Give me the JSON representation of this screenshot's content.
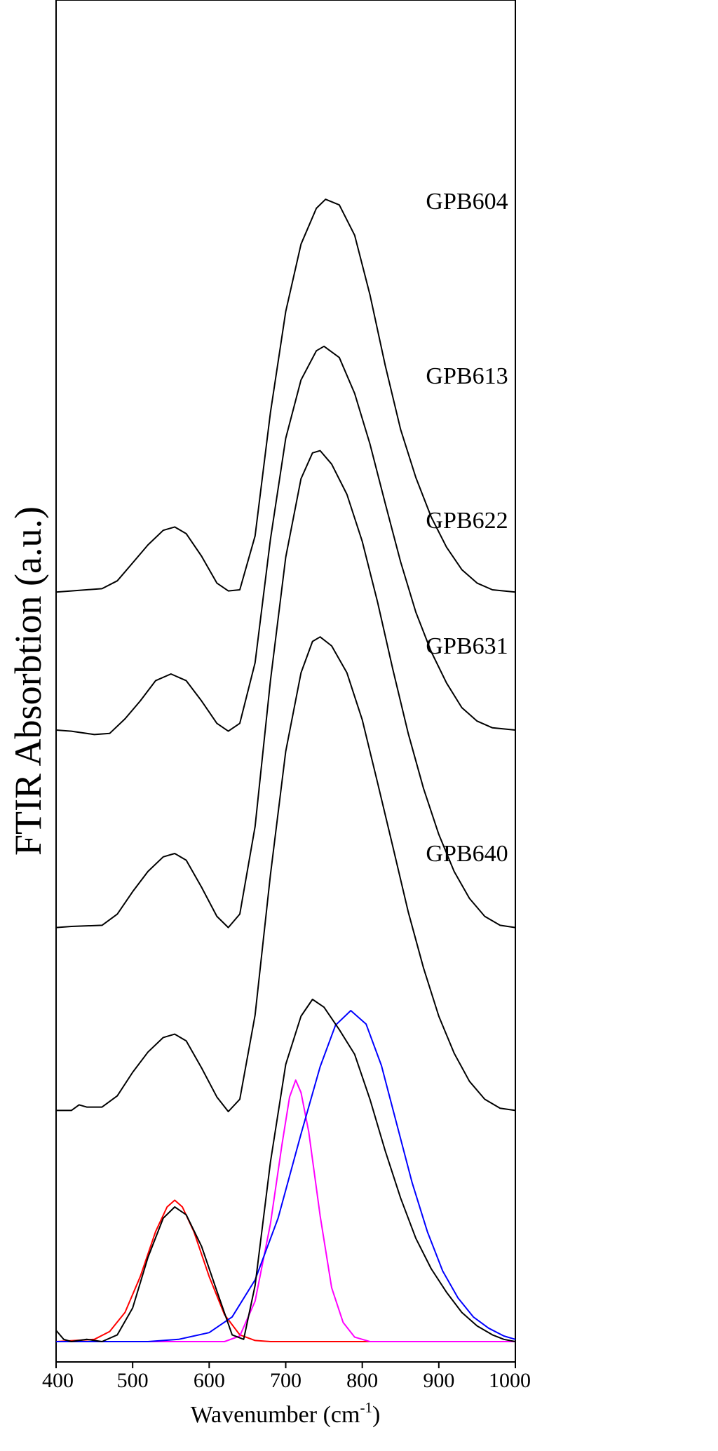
{
  "chart_data": {
    "type": "line",
    "xlabel_main": "Wavenumber (cm",
    "xlabel_sup": "-1",
    "xlabel_close": ")",
    "ylabel": "FTIR Absorbtion (a.u.)",
    "xlim": [
      400,
      1000
    ],
    "ylim": [
      0,
      100
    ],
    "x_ticks": [
      "400",
      "500",
      "600",
      "700",
      "800",
      "900",
      "1000"
    ],
    "grid": false,
    "y_tick_labels": false,
    "series": [
      {
        "name": "GPB604",
        "color": "#000000",
        "offset": 66.8,
        "points": [
          [
            400,
            0
          ],
          [
            420,
            0.1
          ],
          [
            460,
            0.3
          ],
          [
            480,
            1.0
          ],
          [
            500,
            2.6
          ],
          [
            520,
            4.2
          ],
          [
            540,
            5.5
          ],
          [
            555,
            5.8
          ],
          [
            570,
            5.2
          ],
          [
            590,
            3.2
          ],
          [
            610,
            0.8
          ],
          [
            625,
            0.1
          ],
          [
            640,
            0.2
          ],
          [
            660,
            5
          ],
          [
            680,
            16
          ],
          [
            700,
            25
          ],
          [
            720,
            31
          ],
          [
            740,
            34.2
          ],
          [
            752,
            35
          ],
          [
            770,
            34.5
          ],
          [
            790,
            31.8
          ],
          [
            810,
            26.5
          ],
          [
            830,
            20.2
          ],
          [
            850,
            14.5
          ],
          [
            870,
            10.2
          ],
          [
            890,
            6.7
          ],
          [
            910,
            4
          ],
          [
            930,
            2
          ],
          [
            950,
            0.8
          ],
          [
            970,
            0.2
          ],
          [
            1000,
            0
          ]
        ]
      },
      {
        "name": "GPB613",
        "color": "#000000",
        "offset": 54.5,
        "points": [
          [
            400,
            0
          ],
          [
            420,
            -0.1
          ],
          [
            450,
            -0.4
          ],
          [
            470,
            -0.3
          ],
          [
            490,
            1.0
          ],
          [
            510,
            2.6
          ],
          [
            530,
            4.4
          ],
          [
            550,
            5.0
          ],
          [
            570,
            4.4
          ],
          [
            590,
            2.6
          ],
          [
            610,
            0.6
          ],
          [
            625,
            -0.1
          ],
          [
            640,
            0.6
          ],
          [
            660,
            6
          ],
          [
            680,
            17
          ],
          [
            700,
            26
          ],
          [
            720,
            31.2
          ],
          [
            740,
            33.8
          ],
          [
            750,
            34.2
          ],
          [
            770,
            33.2
          ],
          [
            790,
            30
          ],
          [
            810,
            25.5
          ],
          [
            830,
            20.2
          ],
          [
            850,
            15
          ],
          [
            870,
            10.5
          ],
          [
            890,
            7
          ],
          [
            910,
            4.2
          ],
          [
            930,
            2
          ],
          [
            950,
            0.8
          ],
          [
            970,
            0.2
          ],
          [
            1000,
            0
          ]
        ]
      },
      {
        "name": "GPB622",
        "color": "#000000",
        "offset": 36.9,
        "points": [
          [
            400,
            0
          ],
          [
            420,
            0.1
          ],
          [
            460,
            0.2
          ],
          [
            480,
            1.2
          ],
          [
            500,
            3.2
          ],
          [
            520,
            5
          ],
          [
            540,
            6.3
          ],
          [
            555,
            6.6
          ],
          [
            570,
            6
          ],
          [
            590,
            3.6
          ],
          [
            610,
            1.0
          ],
          [
            625,
            0
          ],
          [
            640,
            1.2
          ],
          [
            660,
            9
          ],
          [
            680,
            22
          ],
          [
            700,
            33
          ],
          [
            720,
            40
          ],
          [
            735,
            42.3
          ],
          [
            745,
            42.5
          ],
          [
            760,
            41.3
          ],
          [
            780,
            38.6
          ],
          [
            800,
            34.4
          ],
          [
            820,
            29
          ],
          [
            840,
            23
          ],
          [
            860,
            17.3
          ],
          [
            880,
            12.4
          ],
          [
            900,
            8.3
          ],
          [
            920,
            5
          ],
          [
            940,
            2.6
          ],
          [
            960,
            1
          ],
          [
            980,
            0.2
          ],
          [
            1000,
            0
          ]
        ]
      },
      {
        "name": "GPB631",
        "color": "#000000",
        "offset": 20.6,
        "points": [
          [
            400,
            0
          ],
          [
            420,
            0
          ],
          [
            430,
            0.5
          ],
          [
            440,
            0.3
          ],
          [
            460,
            0.3
          ],
          [
            480,
            1.3
          ],
          [
            500,
            3.4
          ],
          [
            520,
            5.2
          ],
          [
            540,
            6.5
          ],
          [
            555,
            6.8
          ],
          [
            570,
            6.2
          ],
          [
            590,
            3.8
          ],
          [
            610,
            1.2
          ],
          [
            625,
            -0.1
          ],
          [
            640,
            1.0
          ],
          [
            660,
            8.5
          ],
          [
            680,
            21
          ],
          [
            700,
            32
          ],
          [
            720,
            39
          ],
          [
            735,
            41.8
          ],
          [
            745,
            42.2
          ],
          [
            760,
            41.4
          ],
          [
            780,
            39
          ],
          [
            800,
            34.8
          ],
          [
            820,
            29.2
          ],
          [
            840,
            23.5
          ],
          [
            860,
            17.7
          ],
          [
            880,
            12.7
          ],
          [
            900,
            8.4
          ],
          [
            920,
            5.1
          ],
          [
            940,
            2.6
          ],
          [
            960,
            1.0
          ],
          [
            980,
            0.2
          ],
          [
            1000,
            0
          ]
        ]
      },
      {
        "name": "GPB640",
        "color": "#000000",
        "offset": 0,
        "points": [
          [
            400,
            1.0
          ],
          [
            410,
            0.2
          ],
          [
            420,
            0
          ],
          [
            440,
            0.2
          ],
          [
            460,
            0
          ],
          [
            480,
            0.6
          ],
          [
            500,
            3.0
          ],
          [
            520,
            7.5
          ],
          [
            540,
            11
          ],
          [
            555,
            12
          ],
          [
            570,
            11.3
          ],
          [
            590,
            8.5
          ],
          [
            610,
            4.5
          ],
          [
            630,
            0.6
          ],
          [
            645,
            0.2
          ],
          [
            660,
            5
          ],
          [
            680,
            16
          ],
          [
            700,
            24.7
          ],
          [
            720,
            29
          ],
          [
            735,
            30.5
          ],
          [
            750,
            29.8
          ],
          [
            770,
            27.8
          ],
          [
            790,
            25.6
          ],
          [
            810,
            21.6
          ],
          [
            830,
            17
          ],
          [
            850,
            12.8
          ],
          [
            870,
            9.2
          ],
          [
            890,
            6.5
          ],
          [
            910,
            4.4
          ],
          [
            930,
            2.6
          ],
          [
            950,
            1.4
          ],
          [
            970,
            0.6
          ],
          [
            985,
            0.2
          ],
          [
            1000,
            0
          ]
        ]
      },
      {
        "name": "",
        "color": "#ff0000",
        "offset": 0,
        "points": [
          [
            400,
            0
          ],
          [
            450,
            0.2
          ],
          [
            470,
            0.9
          ],
          [
            490,
            2.6
          ],
          [
            510,
            5.8
          ],
          [
            530,
            9.8
          ],
          [
            545,
            12.0
          ],
          [
            555,
            12.6
          ],
          [
            565,
            12.0
          ],
          [
            580,
            9.8
          ],
          [
            600,
            5.8
          ],
          [
            620,
            2.4
          ],
          [
            640,
            0.6
          ],
          [
            660,
            0.1
          ],
          [
            680,
            0
          ],
          [
            1000,
            0
          ]
        ]
      },
      {
        "name": "",
        "color": "#ff00ff",
        "offset": 0,
        "points": [
          [
            400,
            0
          ],
          [
            620,
            0
          ],
          [
            640,
            0.5
          ],
          [
            660,
            3.6
          ],
          [
            680,
            10.5
          ],
          [
            695,
            17.5
          ],
          [
            705,
            21.8
          ],
          [
            713,
            23.3
          ],
          [
            720,
            22.2
          ],
          [
            730,
            18.7
          ],
          [
            745,
            11.2
          ],
          [
            760,
            4.8
          ],
          [
            775,
            1.7
          ],
          [
            790,
            0.4
          ],
          [
            810,
            0
          ],
          [
            1000,
            0
          ]
        ]
      },
      {
        "name": "",
        "color": "#0000ff",
        "offset": 0,
        "points": [
          [
            400,
            0
          ],
          [
            520,
            0
          ],
          [
            560,
            0.2
          ],
          [
            600,
            0.8
          ],
          [
            630,
            2.2
          ],
          [
            660,
            5.5
          ],
          [
            690,
            11
          ],
          [
            720,
            18.5
          ],
          [
            745,
            24.5
          ],
          [
            765,
            28.2
          ],
          [
            785,
            29.5
          ],
          [
            805,
            28.3
          ],
          [
            825,
            24.6
          ],
          [
            845,
            19.4
          ],
          [
            865,
            14.2
          ],
          [
            885,
            9.8
          ],
          [
            905,
            6.3
          ],
          [
            925,
            3.9
          ],
          [
            945,
            2.2
          ],
          [
            965,
            1.2
          ],
          [
            985,
            0.5
          ],
          [
            1000,
            0.2
          ]
        ]
      }
    ]
  }
}
